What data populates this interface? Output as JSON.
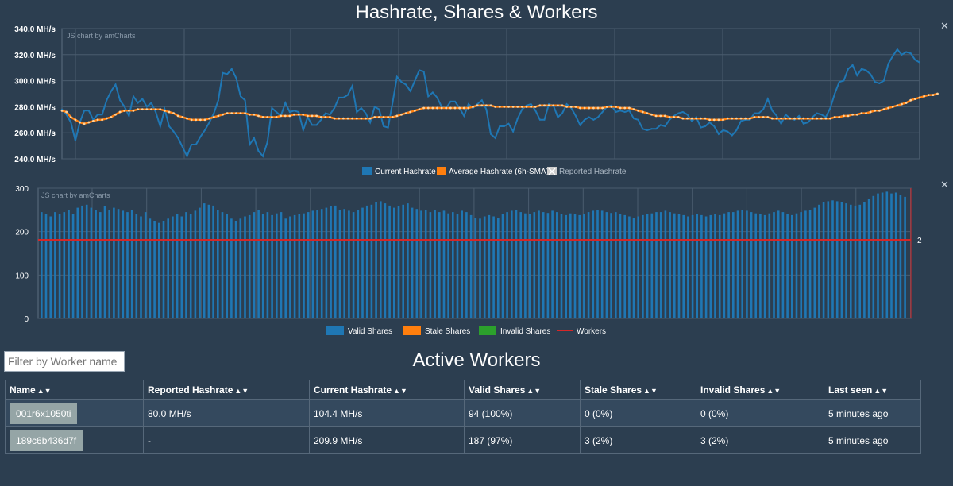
{
  "title": "Hashrate, Shares & Workers",
  "chart_data": [
    {
      "type": "line",
      "watermark": "JS chart by amCharts",
      "y_ticks": [
        "340.0 MH/s",
        "320.0 MH/s",
        "300.0 MH/s",
        "280.0 MH/s",
        "260.0 MH/s",
        "240.0 MH/s"
      ],
      "ylim": [
        240,
        340
      ],
      "grid": true,
      "legend_position": "bottom",
      "colors": {
        "current": "#1f77b4",
        "average": "#ff7f0e",
        "reported": "#cccccc"
      },
      "series": [
        {
          "name": "Current Hashrate",
          "values": [
            278,
            274,
            268,
            254,
            268,
            277,
            277,
            270,
            274,
            274,
            285,
            292,
            297,
            285,
            280,
            273,
            288,
            283,
            286,
            280,
            283,
            276,
            265,
            278,
            265,
            261,
            256,
            249,
            242,
            251,
            251,
            257,
            262,
            268,
            275,
            285,
            306,
            305,
            309,
            302,
            288,
            285,
            251,
            256,
            246,
            242,
            253,
            279,
            276,
            273,
            283,
            276,
            277,
            276,
            262,
            272,
            266,
            266,
            270,
            275,
            274,
            279,
            287,
            287,
            289,
            296,
            276,
            279,
            275,
            268,
            280,
            278,
            265,
            264,
            283,
            303,
            299,
            297,
            292,
            300,
            308,
            307,
            288,
            291,
            287,
            280,
            279,
            284,
            284,
            279,
            273,
            282,
            279,
            282,
            285,
            278,
            259,
            256,
            265,
            265,
            267,
            261,
            271,
            278,
            281,
            282,
            277,
            270,
            270,
            282,
            281,
            272,
            275,
            282,
            279,
            273,
            266,
            270,
            272,
            270,
            272,
            276,
            280,
            281,
            276,
            277,
            276,
            277,
            271,
            270,
            263,
            262,
            263,
            263,
            266,
            265,
            270,
            273,
            275,
            276,
            274,
            269,
            272,
            264,
            265,
            268,
            265,
            259,
            262,
            261,
            258,
            262,
            269,
            270,
            270,
            275,
            275,
            278,
            286,
            277,
            273,
            267,
            274,
            271,
            270,
            273,
            267,
            268,
            272,
            275,
            274,
            272,
            279,
            290,
            299,
            300,
            309,
            312,
            304,
            309,
            308,
            305,
            299,
            298,
            300,
            313,
            319,
            324,
            320,
            322,
            321,
            316,
            314
          ]
        },
        {
          "name": "Average Hashrate (6h-SMA)",
          "values": [
            277,
            276,
            272,
            270,
            268,
            267,
            268,
            269,
            270,
            270,
            271,
            272,
            274,
            276,
            277,
            277,
            277,
            278,
            278,
            278,
            278,
            278,
            278,
            277,
            276,
            275,
            273,
            272,
            271,
            270,
            270,
            270,
            270,
            271,
            272,
            273,
            274,
            275,
            275,
            275,
            275,
            275,
            274,
            274,
            273,
            272,
            272,
            272,
            272,
            273,
            273,
            273,
            274,
            274,
            274,
            273,
            273,
            273,
            272,
            272,
            272,
            271,
            271,
            271,
            271,
            271,
            271,
            271,
            271,
            271,
            272,
            272,
            272,
            272,
            272,
            273,
            274,
            275,
            276,
            277,
            278,
            279,
            279,
            279,
            279,
            279,
            279,
            279,
            279,
            279,
            279,
            279,
            280,
            281,
            281,
            281,
            281,
            280,
            280,
            280,
            280,
            280,
            280,
            280,
            280,
            280,
            280,
            281,
            281,
            281,
            281,
            281,
            281,
            280,
            280,
            280,
            279,
            279,
            279,
            279,
            279,
            279,
            280,
            280,
            280,
            279,
            279,
            279,
            278,
            277,
            276,
            275,
            274,
            273,
            273,
            273,
            272,
            272,
            272,
            271,
            271,
            271,
            271,
            271,
            271,
            270,
            270,
            270,
            270,
            271,
            271,
            271,
            271,
            271,
            271,
            272,
            272,
            272,
            272,
            271,
            271,
            271,
            271,
            271,
            271,
            271,
            271,
            271,
            271,
            271,
            271,
            271,
            271,
            272,
            272,
            273,
            273,
            274,
            274,
            275,
            275,
            276,
            277,
            277,
            278,
            279,
            280,
            281,
            282,
            283,
            285,
            286,
            287,
            288,
            289,
            289,
            290
          ]
        },
        {
          "name": "Reported Hashrate",
          "values": []
        }
      ]
    },
    {
      "type": "bar",
      "watermark": "JS chart by amCharts",
      "y_ticks": [
        "300",
        "200",
        "100",
        "0"
      ],
      "ylim": [
        0,
        300
      ],
      "right_axis_label": "2",
      "workers_value": 2,
      "grid": true,
      "legend_position": "bottom",
      "colors": {
        "valid": "#1f77b4",
        "stale": "#ff7f0e",
        "invalid": "#2ca02c",
        "workers": "#d62728"
      },
      "series": [
        {
          "name": "Valid Shares",
          "values": [
            245,
            240,
            235,
            245,
            240,
            245,
            250,
            240,
            255,
            260,
            262,
            255,
            250,
            245,
            258,
            250,
            255,
            252,
            248,
            245,
            250,
            240,
            235,
            245,
            230,
            225,
            220,
            225,
            230,
            235,
            240,
            235,
            245,
            240,
            248,
            255,
            265,
            262,
            260,
            250,
            245,
            240,
            230,
            225,
            230,
            235,
            238,
            245,
            250,
            240,
            245,
            238,
            242,
            245,
            230,
            235,
            238,
            240,
            242,
            245,
            248,
            250,
            252,
            255,
            258,
            260,
            250,
            252,
            248,
            245,
            250,
            255,
            260,
            262,
            268,
            270,
            265,
            260,
            255,
            258,
            262,
            265,
            255,
            252,
            248,
            250,
            245,
            250,
            245,
            248,
            242,
            245,
            240,
            248,
            245,
            238,
            232,
            230,
            235,
            238,
            235,
            232,
            240,
            245,
            248,
            250,
            245,
            242,
            240,
            245,
            248,
            245,
            243,
            248,
            245,
            240,
            238,
            242,
            240,
            238,
            241,
            245,
            248,
            250,
            248,
            245,
            243,
            245,
            240,
            238,
            235,
            232,
            235,
            238,
            240,
            242,
            245,
            245,
            248,
            245,
            242,
            240,
            238,
            235,
            238,
            240,
            238,
            235,
            238,
            240,
            238,
            242,
            245,
            245,
            248,
            250,
            248,
            245,
            242,
            240,
            238,
            242,
            245,
            248,
            245,
            240,
            238,
            242,
            245,
            248,
            250,
            255,
            262,
            268,
            270,
            272,
            270,
            268,
            265,
            262,
            260,
            262,
            268,
            275,
            282,
            288,
            290,
            292,
            288,
            290,
            285,
            280
          ]
        },
        {
          "name": "Stale Shares",
          "values": []
        },
        {
          "name": "Invalid Shares",
          "values": []
        },
        {
          "name": "Workers",
          "values": []
        }
      ]
    }
  ],
  "filter": {
    "placeholder": "Filter by Worker name",
    "value": ""
  },
  "workers_title": "Active Workers",
  "sort_glyph": "▲▼",
  "table": {
    "headers": [
      "Name",
      "Reported Hashrate",
      "Current Hashrate",
      "Valid Shares",
      "Stale Shares",
      "Invalid Shares",
      "Last seen"
    ],
    "rows": [
      [
        "001r6x1050ti",
        "80.0 MH/s",
        "104.4 MH/s",
        "94 (100%)",
        "0 (0%)",
        "0 (0%)",
        "5 minutes ago"
      ],
      [
        "189c6b436d7f",
        "-",
        "209.9 MH/s",
        "187 (97%)",
        "3 (2%)",
        "3 (2%)",
        "5 minutes ago"
      ]
    ]
  },
  "close_glyph": "✕"
}
